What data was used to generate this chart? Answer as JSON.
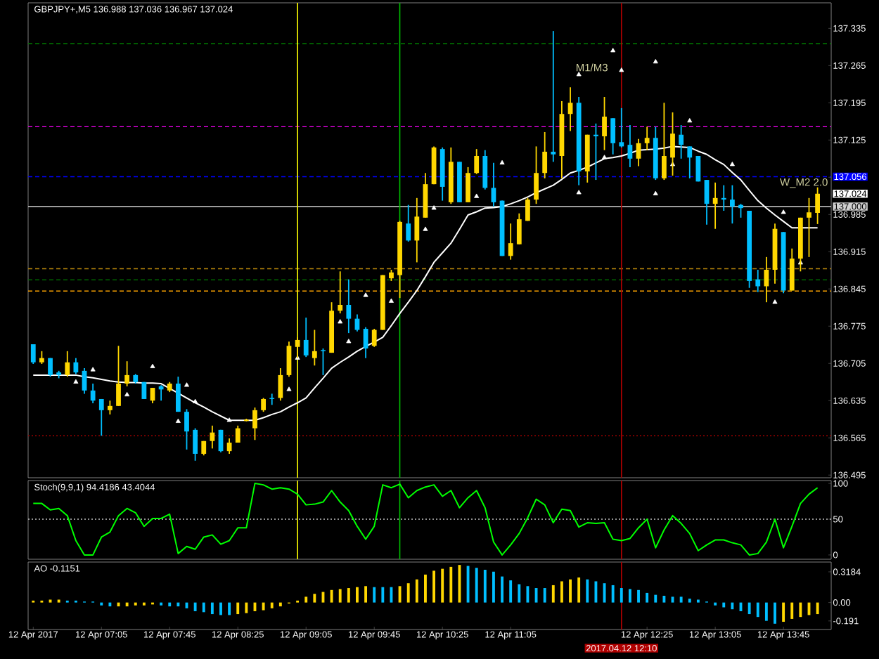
{
  "chart_data": [
    {
      "type": "candlestick",
      "title": "GBPJPY+,M5 136.988 137.036 136.967 137.024",
      "categories": [
        "12 Apr 2017",
        null,
        null,
        null,
        null,
        null,
        null,
        null,
        "12 Apr 07:05",
        null,
        null,
        null,
        null,
        null,
        null,
        null,
        "12 Apr 07:45",
        null,
        null,
        null,
        null,
        null,
        null,
        null,
        "12 Apr 08:25",
        null,
        null,
        null,
        null,
        null,
        null,
        null,
        "12 Apr 09:05",
        null,
        null,
        null,
        null,
        null,
        null,
        null,
        "12 Apr 09:45",
        null,
        null,
        null,
        null,
        null,
        null,
        null,
        "12 Apr 10:25",
        null,
        null,
        null,
        null,
        null,
        null,
        null,
        "12 Apr 11:05",
        null,
        null,
        null,
        null,
        null,
        null,
        null,
        null,
        null,
        null,
        null,
        null,
        "2017.04.12 12:10",
        null,
        null,
        "12 Apr 12:25",
        null,
        null,
        null,
        null,
        null,
        null,
        null,
        "12 Apr 13:05",
        null,
        null,
        null,
        null,
        null,
        null,
        null,
        "12 Apr 13:45",
        null,
        null,
        null,
        null
      ],
      "ohlc": [
        [
          136.741,
          136.741,
          136.704,
          136.707
        ],
        [
          136.707,
          136.728,
          136.704,
          136.715
        ],
        [
          136.715,
          136.715,
          136.68,
          136.683
        ],
        [
          136.688,
          136.691,
          136.677,
          136.683
        ],
        [
          136.683,
          136.728,
          136.68,
          136.707
        ],
        [
          136.707,
          136.715,
          136.685,
          136.688
        ],
        [
          136.691,
          136.696,
          136.648,
          136.654
        ],
        [
          136.654,
          136.667,
          136.63,
          136.635
        ],
        [
          136.638,
          136.638,
          136.569,
          136.617
        ],
        [
          136.617,
          136.635,
          136.609,
          136.625
        ],
        [
          136.625,
          136.738,
          136.625,
          136.667
        ],
        [
          136.667,
          136.709,
          136.662,
          136.683
        ],
        [
          136.683,
          136.685,
          136.667,
          136.67
        ],
        [
          136.67,
          136.67,
          136.638,
          136.638
        ],
        [
          136.635,
          136.659,
          136.63,
          136.659
        ],
        [
          136.662,
          136.664,
          136.635,
          136.656
        ],
        [
          136.654,
          136.67,
          136.651,
          136.667
        ],
        [
          136.667,
          136.68,
          136.614,
          136.614
        ],
        [
          136.614,
          136.619,
          136.543,
          136.577
        ],
        [
          136.58,
          136.583,
          136.522,
          136.535
        ],
        [
          136.535,
          136.559,
          136.532,
          136.559
        ],
        [
          136.559,
          136.588,
          136.545,
          136.575
        ],
        [
          136.58,
          136.58,
          136.538,
          136.54
        ],
        [
          136.54,
          136.564,
          136.535,
          136.556
        ],
        [
          136.556,
          136.588,
          136.556,
          136.583
        ],
        [
          136.598,
          136.601,
          136.596,
          136.598
        ],
        [
          136.583,
          136.622,
          136.561,
          136.617
        ],
        [
          136.617,
          136.64,
          136.614,
          136.638
        ],
        [
          136.64,
          136.648,
          136.627,
          136.638
        ],
        [
          136.64,
          136.696,
          136.635,
          136.683
        ],
        [
          136.683,
          136.746,
          136.68,
          136.738
        ],
        [
          136.736,
          136.754,
          136.715,
          136.749
        ],
        [
          136.749,
          136.791,
          136.717,
          136.72
        ],
        [
          136.715,
          136.768,
          136.701,
          136.728
        ],
        [
          136.73,
          136.733,
          136.683,
          136.728
        ],
        [
          136.725,
          136.82,
          136.725,
          136.804
        ],
        [
          136.804,
          136.878,
          136.799,
          136.815
        ],
        [
          136.815,
          136.863,
          136.762,
          136.789
        ],
        [
          136.789,
          136.797,
          136.765,
          136.768
        ],
        [
          136.77,
          136.773,
          136.715,
          136.733
        ],
        [
          136.738,
          136.77,
          136.736,
          136.768
        ],
        [
          136.768,
          136.871,
          136.768,
          136.871
        ],
        [
          136.865,
          136.881,
          136.86,
          136.876
        ],
        [
          136.871,
          136.973,
          136.828,
          136.971
        ],
        [
          136.968,
          137.003,
          136.934,
          136.936
        ],
        [
          136.936,
          137.016,
          136.895,
          136.981
        ],
        [
          136.979,
          137.063,
          136.979,
          137.042
        ],
        [
          137.042,
          137.113,
          137.042,
          137.111
        ],
        [
          137.108,
          137.111,
          137.011,
          137.037
        ],
        [
          137.008,
          137.111,
          137.005,
          137.084
        ],
        [
          137.084,
          137.084,
          137.008,
          137.008
        ],
        [
          137.008,
          137.074,
          137.008,
          137.063
        ],
        [
          137.063,
          137.108,
          137.061,
          137.095
        ],
        [
          137.095,
          137.106,
          137.032,
          137.035
        ],
        [
          137.035,
          137.082,
          137.0,
          137.008
        ],
        [
          137.011,
          137.011,
          136.907,
          136.907
        ],
        [
          136.907,
          136.968,
          136.9,
          136.931
        ],
        [
          136.929,
          136.987,
          136.929,
          136.976
        ],
        [
          136.973,
          137.016,
          136.973,
          137.013
        ],
        [
          137.013,
          137.113,
          137.005,
          137.063
        ],
        [
          137.063,
          137.14,
          137.053,
          137.103
        ],
        [
          137.103,
          137.33,
          137.084,
          137.098
        ],
        [
          137.095,
          137.198,
          137.053,
          137.174
        ],
        [
          137.174,
          137.224,
          137.142,
          137.195
        ],
        [
          137.195,
          137.206,
          137.04,
          137.066
        ],
        [
          137.066,
          137.135,
          137.045,
          137.135
        ],
        [
          137.135,
          137.156,
          137.05,
          137.132
        ],
        [
          137.132,
          137.206,
          137.106,
          137.169
        ],
        [
          137.166,
          137.166,
          137.098,
          137.119
        ],
        [
          137.121,
          137.185,
          137.111,
          137.113
        ],
        [
          137.116,
          137.153,
          137.074,
          137.09
        ],
        [
          137.09,
          137.127,
          137.076,
          137.119
        ],
        [
          137.119,
          137.15,
          137.106,
          137.129
        ],
        [
          137.129,
          137.15,
          137.05,
          137.053
        ],
        [
          137.053,
          137.195,
          137.05,
          137.095
        ],
        [
          137.092,
          137.177,
          137.058,
          137.137
        ],
        [
          137.135,
          137.153,
          137.09,
          137.116
        ],
        [
          137.113,
          137.113,
          137.053,
          137.092
        ],
        [
          137.095,
          137.095,
          137.047,
          137.047
        ],
        [
          137.05,
          137.05,
          136.966,
          137.005
        ],
        [
          137.005,
          137.045,
          136.958,
          137.016
        ],
        [
          137.016,
          137.04,
          136.992,
          137.013
        ],
        [
          137.013,
          137.04,
          136.968,
          137.0
        ],
        [
          137.003,
          137.005,
          136.979,
          136.997
        ],
        [
          136.992,
          136.992,
          136.847,
          136.86
        ],
        [
          136.863,
          136.881,
          136.839,
          136.85
        ],
        [
          136.85,
          136.905,
          136.82,
          136.881
        ],
        [
          136.881,
          136.968,
          136.855,
          136.958
        ],
        [
          136.952,
          136.952,
          136.837,
          136.842
        ],
        [
          136.842,
          136.921,
          136.842,
          136.902
        ],
        [
          136.902,
          136.979,
          136.878,
          136.979
        ],
        [
          136.979,
          137.016,
          136.905,
          136.989
        ],
        [
          136.988,
          137.036,
          136.967,
          137.024
        ]
      ],
      "colors": [
        "#00bfff",
        "#ffd700",
        "#00bfff",
        "#00bfff",
        "#ffd700",
        "#00bfff",
        "#00bfff",
        "#00bfff",
        "#00bfff",
        "#ffd700",
        "#ffd700",
        "#ffd700",
        "#00bfff",
        "#00bfff",
        "#ffd700",
        "#00bfff",
        "#ffd700",
        "#00bfff",
        "#00bfff",
        "#00bfff",
        "#ffd700",
        "#ffd700",
        "#00bfff",
        "#ffd700",
        "#ffd700",
        "#ffd700",
        "#ffd700",
        "#ffd700",
        "#00bfff",
        "#ffd700",
        "#ffd700",
        "#ffd700",
        "#00bfff",
        "#ffd700",
        "#00bfff",
        "#ffd700",
        "#ffd700",
        "#00bfff",
        "#00bfff",
        "#00bfff",
        "#ffd700",
        "#ffd700",
        "#ffd700",
        "#ffd700",
        "#00bfff",
        "#ffd700",
        "#ffd700",
        "#ffd700",
        "#00bfff",
        "#ffd700",
        "#00bfff",
        "#ffd700",
        "#ffd700",
        "#00bfff",
        "#00bfff",
        "#00bfff",
        "#ffd700",
        "#ffd700",
        "#ffd700",
        "#ffd700",
        "#ffd700",
        "#00bfff",
        "#ffd700",
        "#ffd700",
        "#00bfff",
        "#ffd700",
        "#00bfff",
        "#ffd700",
        "#00bfff",
        "#00bfff",
        "#00bfff",
        "#ffd700",
        "#ffd700",
        "#00bfff",
        "#ffd700",
        "#ffd700",
        "#00bfff",
        "#00bfff",
        "#00bfff",
        "#00bfff",
        "#ffd700",
        "#00bfff",
        "#00bfff",
        "#00bfff",
        "#00bfff",
        "#00bfff",
        "#ffd700",
        "#ffd700",
        "#00bfff",
        "#ffd700",
        "#ffd700",
        "#ffd700",
        "#ffd700"
      ],
      "series": [
        {
          "type": "line",
          "color": "#ffffff",
          "values": [
            136.683,
            136.683,
            136.683,
            136.683,
            136.683,
            136.683,
            136.68,
            136.678,
            136.675,
            136.672,
            136.67,
            136.669,
            136.669,
            136.668,
            136.668,
            136.667,
            136.658,
            136.649,
            136.64,
            136.631,
            136.623,
            136.614,
            136.606,
            136.598,
            136.598,
            136.598,
            136.598,
            136.603,
            136.609,
            136.614,
            136.623,
            136.631,
            136.64,
            136.659,
            136.677,
            136.696,
            136.707,
            136.717,
            136.728,
            136.737,
            136.745,
            136.754,
            136.776,
            136.799,
            136.82,
            136.842,
            136.868,
            136.895,
            136.913,
            136.931,
            136.957,
            136.984,
            136.99,
            136.997,
            136.998,
            137.0,
            137.005,
            137.011,
            137.018,
            137.026,
            137.033,
            137.04,
            137.051,
            137.063,
            137.068,
            137.074,
            137.082,
            137.09,
            137.092,
            137.095,
            137.1,
            137.106,
            137.107,
            137.108,
            137.11,
            137.113,
            137.112,
            137.111,
            137.104,
            137.098,
            137.088,
            137.079,
            137.064,
            137.05,
            137.03,
            137.011,
            136.997,
            136.984,
            136.972,
            136.96,
            136.96,
            136.96,
            136.96
          ]
        },
        {
          "type": "scatter",
          "color": "#ffffff",
          "marker": "triangle",
          "values": [
            null,
            null,
            null,
            null,
            null,
            136.67,
            null,
            null,
            null,
            null,
            null,
            136.646,
            null,
            null,
            null,
            null,
            null,
            136.596,
            null,
            null,
            null,
            null,
            null,
            null,
            null,
            null,
            null,
            null,
            null,
            null,
            136.656,
            136.715,
            null,
            null,
            null,
            null,
            136.783,
            136.746,
            null,
            null,
            null,
            null,
            136.822,
            null,
            null,
            null,
            136.957,
            136.997,
            null,
            null,
            null,
            null,
            137.019,
            null,
            null,
            null,
            null,
            null,
            null,
            null,
            null,
            null,
            null,
            null,
            137.026,
            null,
            null,
            137.092,
            null,
            null,
            null,
            null,
            null,
            137.024,
            null,
            137.079,
            null,
            null,
            null,
            null,
            null,
            null,
            null,
            null,
            null,
            null,
            null,
            136.82,
            null,
            null,
            136.894,
            null,
            null
          ]
        },
        {
          "type": "scatter",
          "color": "#ffffff",
          "marker": "triangle",
          "values": [
            null,
            null,
            null,
            null,
            null,
            null,
            null,
            136.693,
            null,
            null,
            null,
            null,
            null,
            null,
            136.699,
            null,
            null,
            null,
            136.664,
            136.633,
            null,
            null,
            null,
            136.598,
            null,
            null,
            null,
            null,
            null,
            null,
            null,
            null,
            null,
            null,
            null,
            null,
            null,
            null,
            null,
            136.833,
            null,
            null,
            null,
            null,
            null,
            null,
            null,
            null,
            null,
            null,
            null,
            null,
            null,
            null,
            null,
            137.082,
            null,
            null,
            null,
            null,
            null,
            null,
            null,
            null,
            137.248,
            null,
            null,
            null,
            137.293,
            137.256,
            null,
            null,
            null,
            137.272,
            null,
            null,
            null,
            137.161,
            null,
            null,
            null,
            null,
            137.079,
            null,
            null,
            null,
            null,
            null,
            136.989,
            null,
            null,
            null,
            null
          ]
        }
      ],
      "ylim": [
        136.49,
        137.383
      ],
      "yticks": [
        137.335,
        137.265,
        137.195,
        137.125,
        {
          "value": 137.055,
          "label": null
        },
        136.985,
        136.915,
        136.845,
        136.775,
        136.705,
        136.635,
        136.565,
        136.495
      ],
      "tick_labels": "y",
      "ref_lines": [
        {
          "axis": "y",
          "value": 137.306,
          "color": "#008000",
          "line_style": "dashed"
        },
        {
          "axis": "y",
          "value": 137.15,
          "color": "#ff00ff",
          "line_style": "dashed"
        },
        {
          "axis": "y",
          "value": 137.056,
          "label": "137.056",
          "color": "#0000ff",
          "line_style": "dashed"
        },
        {
          "axis": "y",
          "value": 137.0,
          "label": "137.000",
          "color": "#d0d0d0",
          "line_style": "solid"
        },
        {
          "axis": "y",
          "value": 136.883,
          "color": "#b8860b",
          "line_style": "dashed"
        },
        {
          "axis": "y",
          "value": 136.862,
          "color": "#008000",
          "line_style": "dashed"
        },
        {
          "axis": "y",
          "value": 136.841,
          "color": "#ffa500",
          "line_style": "dashed"
        },
        {
          "axis": "y",
          "value": 136.569,
          "color": "#a00000",
          "line_style": "dotted"
        },
        {
          "axis": "x",
          "value": "2017.04.12 12:10",
          "color": "#b00000",
          "line_style": "solid"
        }
      ],
      "annotations": [
        "M1/M3",
        {
          "text": "W_M2 2.0",
          "y": 137.044
        },
        "137.024"
      ]
    },
    {
      "type": "line",
      "title": "Stoch(9,9,1) 94.4186 43.4044",
      "categories": [
        "12 Apr 2017",
        null,
        null,
        null,
        null,
        null,
        null,
        null,
        "12 Apr 07:05",
        null,
        null,
        null,
        null,
        null,
        null,
        null,
        "12 Apr 07:45",
        null,
        null,
        null,
        null,
        null,
        null,
        null,
        "12 Apr 08:25",
        null,
        null,
        null,
        null,
        null,
        null,
        null,
        "12 Apr 09:05",
        null,
        null,
        null,
        null,
        null,
        null,
        null,
        "12 Apr 09:45",
        null,
        null,
        null,
        null,
        null,
        null,
        null,
        "12 Apr 10:25",
        null,
        null,
        null,
        null,
        null,
        null,
        null,
        "12 Apr 11:05",
        null,
        null,
        null,
        null,
        null,
        null,
        null,
        null,
        null,
        null,
        null,
        null,
        "2017.04.12 12:10",
        null,
        null,
        "12 Apr 12:25",
        null,
        null,
        null,
        null,
        null,
        null,
        null,
        "12 Apr 13:05",
        null,
        null,
        null,
        null,
        null,
        null,
        null,
        "12 Apr 13:45",
        null,
        null,
        null,
        null
      ],
      "series": [
        {
          "color": "#00ff00",
          "values": [
            72,
            72,
            63,
            65,
            55,
            20,
            0,
            0,
            25,
            32,
            55,
            65,
            59,
            40,
            51,
            51,
            57,
            2,
            12,
            8,
            25,
            28,
            15,
            20,
            38,
            38,
            100,
            98,
            92,
            94,
            92,
            85,
            70,
            71,
            74,
            90,
            74,
            62,
            40,
            22,
            40,
            98,
            94,
            99,
            80,
            90,
            95,
            98,
            82,
            90,
            66,
            80,
            90,
            66,
            18,
            0,
            14,
            30,
            52,
            78,
            70,
            45,
            64,
            62,
            39,
            45,
            44,
            45,
            22,
            20,
            23,
            38,
            50,
            10,
            35,
            55,
            44,
            30,
            6,
            14,
            21,
            21,
            17,
            14,
            0,
            2,
            18,
            50,
            10,
            40,
            72,
            85,
            94
          ]
        }
      ],
      "ylim": [
        -6,
        104
      ],
      "yticks": [
        100,
        50,
        0
      ],
      "tick_labels": "y",
      "ref_lines": [
        {
          "axis": "y",
          "value": 50,
          "color": "#c0c0c0",
          "line_style": "dotted"
        },
        {
          "axis": "x",
          "value": "2017.04.12 12:10",
          "color": "#b00000",
          "line_style": "solid"
        }
      ]
    },
    {
      "type": "bar",
      "title": "AO -0.1151",
      "categories": [
        "12 Apr 2017",
        null,
        null,
        null,
        null,
        null,
        null,
        null,
        "12 Apr 07:05",
        null,
        null,
        null,
        null,
        null,
        null,
        null,
        "12 Apr 07:45",
        null,
        null,
        null,
        null,
        null,
        null,
        null,
        "12 Apr 08:25",
        null,
        null,
        null,
        null,
        null,
        null,
        null,
        "12 Apr 09:05",
        null,
        null,
        null,
        null,
        null,
        null,
        null,
        "12 Apr 09:45",
        null,
        null,
        null,
        null,
        null,
        null,
        null,
        "12 Apr 10:25",
        null,
        null,
        null,
        null,
        null,
        null,
        null,
        "12 Apr 11:05",
        null,
        null,
        null,
        null,
        null,
        null,
        null,
        null,
        null,
        null,
        null,
        null,
        "2017.04.12 12:10",
        null,
        null,
        "12 Apr 12:25",
        null,
        null,
        null,
        null,
        null,
        null,
        null,
        "12 Apr 13:05",
        null,
        null,
        null,
        null,
        null,
        null,
        null,
        "12 Apr 13:45",
        null,
        null,
        null,
        null
      ],
      "values": [
        0.02,
        0.02,
        0.03,
        0.03,
        0.02,
        0.02,
        0.01,
        0.01,
        -0.03,
        -0.04,
        -0.04,
        -0.04,
        -0.03,
        -0.03,
        -0.02,
        -0.03,
        -0.04,
        -0.04,
        -0.06,
        -0.09,
        -0.1,
        -0.12,
        -0.13,
        -0.13,
        -0.12,
        -0.11,
        -0.09,
        -0.08,
        -0.06,
        -0.04,
        -0.01,
        0.02,
        0.06,
        0.09,
        0.11,
        0.13,
        0.14,
        0.15,
        0.16,
        0.17,
        0.16,
        0.16,
        0.16,
        0.17,
        0.2,
        0.24,
        0.29,
        0.33,
        0.35,
        0.37,
        0.39,
        0.38,
        0.36,
        0.34,
        0.32,
        0.27,
        0.23,
        0.19,
        0.17,
        0.15,
        0.15,
        0.18,
        0.22,
        0.24,
        0.26,
        0.24,
        0.22,
        0.2,
        0.18,
        0.15,
        0.14,
        0.13,
        0.1,
        0.08,
        0.07,
        0.06,
        0.06,
        0.04,
        0.03,
        0.01,
        -0.03,
        -0.05,
        -0.07,
        -0.09,
        -0.12,
        -0.15,
        -0.19,
        -0.22,
        -0.2,
        -0.17,
        -0.15,
        -0.13,
        -0.12
      ],
      "colors": [
        "#ffd700",
        "#ffd700",
        "#ffd700",
        "#ffd700",
        "#00bfff",
        "#00bfff",
        "#00bfff",
        "#00bfff",
        "#00bfff",
        "#00bfff",
        "#ffd700",
        "#ffd700",
        "#ffd700",
        "#ffd700",
        "#ffd700",
        "#00bfff",
        "#00bfff",
        "#00bfff",
        "#00bfff",
        "#00bfff",
        "#00bfff",
        "#00bfff",
        "#00bfff",
        "#00bfff",
        "#ffd700",
        "#ffd700",
        "#ffd700",
        "#ffd700",
        "#ffd700",
        "#ffd700",
        "#ffd700",
        "#ffd700",
        "#ffd700",
        "#ffd700",
        "#ffd700",
        "#ffd700",
        "#ffd700",
        "#ffd700",
        "#ffd700",
        "#ffd700",
        "#00bfff",
        "#00bfff",
        "#00bfff",
        "#ffd700",
        "#ffd700",
        "#ffd700",
        "#ffd700",
        "#ffd700",
        "#ffd700",
        "#ffd700",
        "#ffd700",
        "#00bfff",
        "#00bfff",
        "#00bfff",
        "#00bfff",
        "#00bfff",
        "#00bfff",
        "#00bfff",
        "#00bfff",
        "#00bfff",
        "#00bfff",
        "#ffd700",
        "#ffd700",
        "#ffd700",
        "#ffd700",
        "#00bfff",
        "#00bfff",
        "#00bfff",
        "#00bfff",
        "#00bfff",
        "#00bfff",
        "#00bfff",
        "#00bfff",
        "#00bfff",
        "#00bfff",
        "#00bfff",
        "#00bfff",
        "#00bfff",
        "#00bfff",
        "#00bfff",
        "#00bfff",
        "#00bfff",
        "#00bfff",
        "#00bfff",
        "#00bfff",
        "#00bfff",
        "#00bfff",
        "#00bfff",
        "#ffd700",
        "#ffd700",
        "#ffd700",
        "#ffd700",
        "#ffd700"
      ],
      "ylim": [
        -0.28,
        0.42
      ],
      "yticks": [
        {
          "value": 0.3184,
          "label": "0.3184"
        },
        {
          "value": 0,
          "label": "0.00"
        },
        -0.191
      ],
      "ref_lines": [
        {
          "axis": "x",
          "value": "2017.04.12 12:10",
          "color": "#b00000",
          "line_style": "solid"
        }
      ]
    }
  ]
}
